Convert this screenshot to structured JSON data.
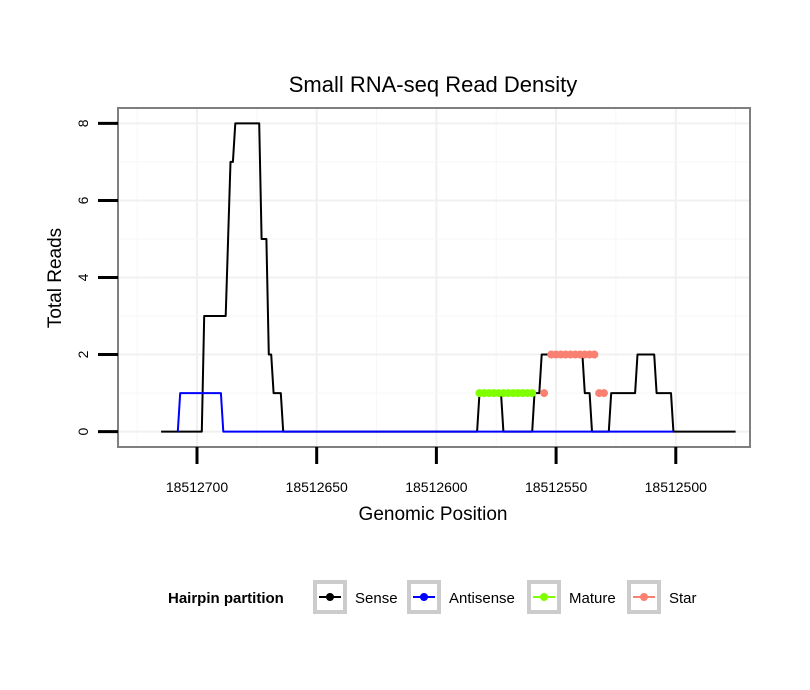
{
  "chart_data": {
    "type": "line",
    "title": "Small RNA-seq Read Density",
    "xlabel": "Genomic Position",
    "ylabel": "Total Reads",
    "x_reversed": true,
    "xlim": [
      18512733,
      18512469
    ],
    "ylim": [
      -0.4,
      8.4
    ],
    "xticks": [
      18512700,
      18512650,
      18512600,
      18512550,
      18512500
    ],
    "xtick_labels": [
      "18512700",
      "18512650",
      "18512600",
      "18512550",
      "18512500"
    ],
    "yticks": [
      0,
      2,
      4,
      6,
      8
    ],
    "ytick_labels": [
      "0",
      "2",
      "4",
      "6",
      "8"
    ],
    "grid": true,
    "legend": {
      "title": "Hairpin partition",
      "position": "bottom",
      "entries": [
        "Sense",
        "Antisense",
        "Mature",
        "Star"
      ]
    },
    "series": [
      {
        "name": "Sense",
        "color": "#000000",
        "style": "line",
        "points": [
          [
            18512715,
            0
          ],
          [
            18512698,
            0
          ],
          [
            18512697,
            3
          ],
          [
            18512688,
            3
          ],
          [
            18512687,
            5
          ],
          [
            18512686,
            7
          ],
          [
            18512685,
            7
          ],
          [
            18512684,
            8
          ],
          [
            18512674,
            8
          ],
          [
            18512673,
            5
          ],
          [
            18512671,
            5
          ],
          [
            18512670,
            2
          ],
          [
            18512669,
            2
          ],
          [
            18512668,
            1
          ],
          [
            18512665,
            1
          ],
          [
            18512664,
            0
          ],
          [
            18512583,
            0
          ],
          [
            18512582,
            1
          ],
          [
            18512573,
            1
          ],
          [
            18512572,
            0
          ],
          [
            18512560,
            0
          ],
          [
            18512559,
            1
          ],
          [
            18512557,
            1
          ],
          [
            18512556,
            2
          ],
          [
            18512539,
            2
          ],
          [
            18512538,
            1
          ],
          [
            18512536,
            1
          ],
          [
            18512535,
            0
          ],
          [
            18512528,
            0
          ],
          [
            18512527,
            1
          ],
          [
            18512517,
            1
          ],
          [
            18512516,
            2
          ],
          [
            18512509,
            2
          ],
          [
            18512508,
            1
          ],
          [
            18512502,
            1
          ],
          [
            18512501,
            0
          ],
          [
            18512475,
            0
          ]
        ]
      },
      {
        "name": "Antisense",
        "color": "#0000ff",
        "style": "line",
        "points": [
          [
            18512708,
            0
          ],
          [
            18512707,
            1
          ],
          [
            18512690,
            1
          ],
          [
            18512689,
            0
          ],
          [
            18512501,
            0
          ]
        ]
      },
      {
        "name": "Mature",
        "color": "#7fff00",
        "style": "points",
        "points": [
          [
            18512582,
            1
          ],
          [
            18512580,
            1
          ],
          [
            18512578,
            1
          ],
          [
            18512576,
            1
          ],
          [
            18512574,
            1
          ],
          [
            18512572,
            1
          ],
          [
            18512570,
            1
          ],
          [
            18512568,
            1
          ],
          [
            18512566,
            1
          ],
          [
            18512564,
            1
          ],
          [
            18512562,
            1
          ],
          [
            18512560,
            1
          ]
        ]
      },
      {
        "name": "Star",
        "color": "#fa8072",
        "style": "points",
        "points": [
          [
            18512555,
            1
          ],
          [
            18512552,
            2
          ],
          [
            18512550,
            2
          ],
          [
            18512548,
            2
          ],
          [
            18512546,
            2
          ],
          [
            18512544,
            2
          ],
          [
            18512542,
            2
          ],
          [
            18512540,
            2
          ],
          [
            18512538,
            2
          ],
          [
            18512536,
            2
          ],
          [
            18512534,
            2
          ],
          [
            18512532,
            1
          ],
          [
            18512530,
            1
          ]
        ]
      }
    ]
  }
}
